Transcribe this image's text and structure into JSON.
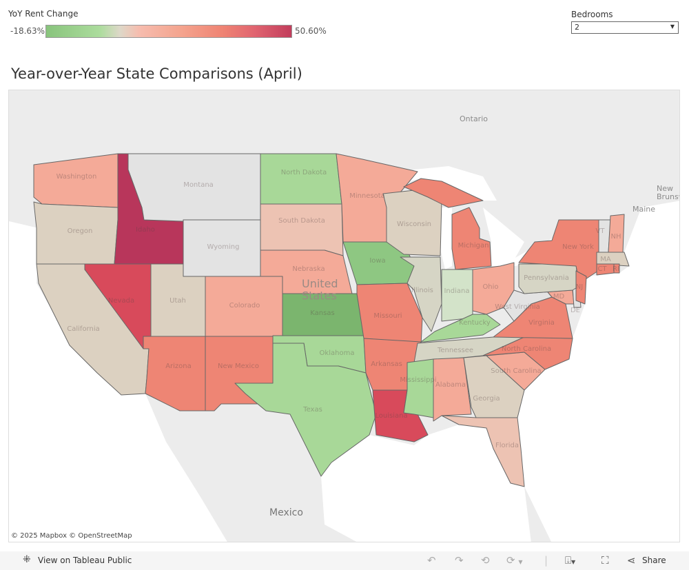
{
  "legend": {
    "title": "YoY Rent Change",
    "min": "-18.63%",
    "max": "50.60%"
  },
  "filter": {
    "label": "Bedrooms",
    "value": "2"
  },
  "title": "Year-over-Year State Comparisons (April)",
  "basemap_labels": {
    "ontario": "Ontario",
    "maine": "Maine",
    "new_brunswick": "New\nBrunsw",
    "us": "United\nStates",
    "mexico": "Mexico"
  },
  "attribution": "© 2025 Mapbox © OpenStreetMap",
  "toolbar": {
    "view_label": "View on Tableau Public",
    "share_label": "Share",
    "icons": [
      "tableau-logo-icon",
      "undo-icon",
      "redo-icon",
      "revert-icon",
      "refresh-icon",
      "download-icon",
      "fullscreen-icon",
      "share-icon"
    ]
  },
  "colors": {
    "crimson": "#b8365b",
    "red": "#d84a5b",
    "salmon": "#ee8574",
    "light_salmon": "#f4aa98",
    "pink": "#edc3b3",
    "beige": "#dcd1c1",
    "gray_beige": "#d6d5c5",
    "light_green": "#a8d898",
    "green": "#8ec782",
    "dark_green": "#7bb56e",
    "pale_green": "#d3e3c9",
    "no_data": "#e3e3e3"
  },
  "states": [
    {
      "id": "WA",
      "label": "Washington",
      "color": "#f4aa98"
    },
    {
      "id": "OR",
      "label": "Oregon",
      "color": "#dcd1c1"
    },
    {
      "id": "CA",
      "label": "California",
      "color": "#dcd1c1"
    },
    {
      "id": "NV",
      "label": "Nevada",
      "color": "#d84a5b"
    },
    {
      "id": "ID",
      "label": "Idaho",
      "color": "#b8365b"
    },
    {
      "id": "MT",
      "label": "Montana",
      "color": "#e3e3e3"
    },
    {
      "id": "WY",
      "label": "Wyoming",
      "color": "#e3e3e3"
    },
    {
      "id": "UT",
      "label": "Utah",
      "color": "#dcd1c1"
    },
    {
      "id": "CO",
      "label": "Colorado",
      "color": "#f4aa98"
    },
    {
      "id": "AZ",
      "label": "Arizona",
      "color": "#ee8574"
    },
    {
      "id": "NM",
      "label": "New Mexico",
      "color": "#ee8574"
    },
    {
      "id": "ND",
      "label": "North Dakota",
      "color": "#a8d898"
    },
    {
      "id": "SD",
      "label": "South Dakota",
      "color": "#edc3b3"
    },
    {
      "id": "NE",
      "label": "Nebraska",
      "color": "#f4aa98"
    },
    {
      "id": "KS",
      "label": "Kansas",
      "color": "#7bb56e"
    },
    {
      "id": "OK",
      "label": "Oklahoma",
      "color": "#a8d898"
    },
    {
      "id": "TX",
      "label": "Texas",
      "color": "#a8d898"
    },
    {
      "id": "MN",
      "label": "Minnesota",
      "color": "#f4aa98"
    },
    {
      "id": "IA",
      "label": "Iowa",
      "color": "#8ec782"
    },
    {
      "id": "MO",
      "label": "Missouri",
      "color": "#ee8574"
    },
    {
      "id": "AR",
      "label": "Arkansas",
      "color": "#ee8574"
    },
    {
      "id": "LA",
      "label": "Louisiana",
      "color": "#d84a5b"
    },
    {
      "id": "WI",
      "label": "Wisconsin",
      "color": "#dcd1c1"
    },
    {
      "id": "IL",
      "label": "Illinois",
      "color": "#d6d5c5"
    },
    {
      "id": "MI",
      "label": "Michigan",
      "color": "#ee8574"
    },
    {
      "id": "IN",
      "label": "Indiana",
      "color": "#d3e3c9"
    },
    {
      "id": "OH",
      "label": "Ohio",
      "color": "#f4aa98"
    },
    {
      "id": "KY",
      "label": "Kentucky",
      "color": "#a8d898"
    },
    {
      "id": "TN",
      "label": "Tennessee",
      "color": "#d6d5c5"
    },
    {
      "id": "MS",
      "label": "Mississippi",
      "color": "#a8d898"
    },
    {
      "id": "AL",
      "label": "Alabama",
      "color": "#f4aa98"
    },
    {
      "id": "GA",
      "label": "Georgia",
      "color": "#dcd1c1"
    },
    {
      "id": "FL",
      "label": "Florida",
      "color": "#edc3b3"
    },
    {
      "id": "SC",
      "label": "South Carolina",
      "color": "#f4aa98"
    },
    {
      "id": "NC",
      "label": "North Carolina",
      "color": "#ee8574"
    },
    {
      "id": "VA",
      "label": "Virginia",
      "color": "#ee8574"
    },
    {
      "id": "WV",
      "label": "West Virginia",
      "color": "#e3e3e3"
    },
    {
      "id": "MD",
      "label": "MD",
      "color": "#f4aa98"
    },
    {
      "id": "DE",
      "label": "DE",
      "color": "#e3e3e3"
    },
    {
      "id": "PA",
      "label": "Pennsylvania",
      "color": "#d6d5c5"
    },
    {
      "id": "NY",
      "label": "New York",
      "color": "#ee8574"
    },
    {
      "id": "NJ",
      "label": "NJ",
      "color": "#ee8574"
    },
    {
      "id": "VT",
      "label": "VT",
      "color": "#e3e3e3"
    },
    {
      "id": "NH",
      "label": "NH",
      "color": "#f4aa98"
    },
    {
      "id": "MA",
      "label": "MA",
      "color": "#dcd1c1"
    },
    {
      "id": "CT",
      "label": "CT",
      "color": "#ee8574"
    },
    {
      "id": "RI",
      "label": "RI",
      "color": "#ee8574"
    }
  ]
}
